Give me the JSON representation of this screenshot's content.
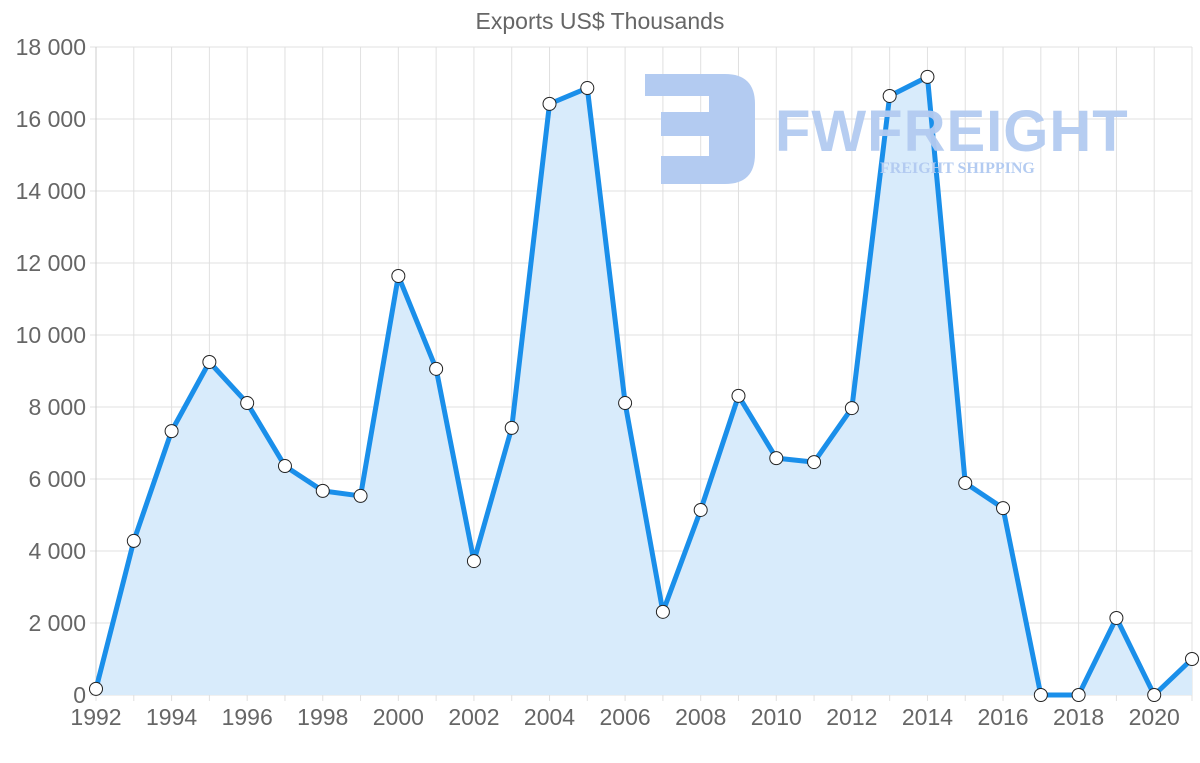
{
  "chart_data": {
    "type": "area",
    "title": "Exports US$ Thousands",
    "xlabel": "",
    "ylabel": "",
    "x": [
      1992,
      1993,
      1994,
      1995,
      1996,
      1997,
      1998,
      1999,
      2000,
      2001,
      2002,
      2003,
      2004,
      2005,
      2006,
      2007,
      2008,
      2009,
      2010,
      2011,
      2012,
      2013,
      2014,
      2015,
      2016,
      2017,
      2018,
      2019,
      2020,
      2021
    ],
    "series": [
      {
        "name": "Exports US$ Thousands",
        "values": [
          170,
          4280,
          7330,
          9250,
          8110,
          6360,
          5670,
          5530,
          11640,
          9060,
          3720,
          7420,
          16420,
          16860,
          8110,
          2310,
          5140,
          8310,
          6580,
          6470,
          7970,
          16640,
          17170,
          5890,
          5190,
          0,
          0,
          2140,
          0,
          1000
        ]
      }
    ],
    "ylim": [
      0,
      18000
    ],
    "y_ticks": [
      "0",
      "2 000",
      "4 000",
      "6 000",
      "8 000",
      "10 000",
      "12 000",
      "14 000",
      "16 000",
      "18 000"
    ],
    "x_ticks": [
      "1992",
      "1994",
      "1996",
      "1998",
      "2000",
      "2002",
      "2004",
      "2006",
      "2008",
      "2010",
      "2012",
      "2014",
      "2016",
      "2018",
      "2020"
    ],
    "grid": true,
    "legend": "none",
    "colors": {
      "line": "#1a8fea",
      "fill": "#d8ebfb",
      "grid": "#e0e0e0"
    }
  },
  "watermark": {
    "brand": "FWFREIGHT",
    "tagline": "FREIGHT SHIPPING",
    "color": "#b3cbf1"
  }
}
